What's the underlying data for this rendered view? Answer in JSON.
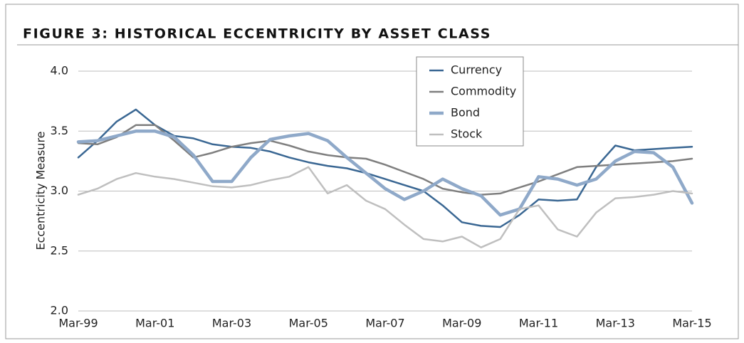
{
  "chart_data": {
    "type": "line",
    "title": "FIGURE 3: HISTORICAL ECCENTRICITY BY ASSET CLASS",
    "y_label": "Eccentricity Measure",
    "categories": [
      "Mar-99",
      null,
      null,
      null,
      "Mar-01",
      null,
      null,
      null,
      "Mar-03",
      null,
      null,
      null,
      "Mar-05",
      null,
      null,
      null,
      "Mar-07",
      null,
      null,
      null,
      "Mar-09",
      null,
      null,
      null,
      "Mar-11",
      null,
      null,
      null,
      "Mar-13",
      null,
      null,
      null,
      "Mar-15"
    ],
    "ylim": [
      2.0,
      4.0
    ],
    "yticks": [
      {
        "value": 2.0,
        "label": "2.0"
      },
      {
        "value": 2.5,
        "label": "2.5"
      },
      {
        "value": 3.0,
        "label": "3.0"
      },
      {
        "value": 3.5,
        "label": "3.5"
      },
      {
        "value": 4.0,
        "label": "4.0"
      }
    ],
    "grid": true,
    "legend": "top",
    "series": [
      {
        "name": "Currency",
        "color": "#3a6793",
        "width": 2.5,
        "values": [
          3.28,
          3.42,
          3.58,
          3.68,
          3.55,
          3.46,
          3.44,
          3.39,
          3.37,
          3.36,
          3.33,
          3.28,
          3.24,
          3.21,
          3.19,
          3.15,
          3.1,
          3.05,
          3.0,
          2.88,
          2.74,
          2.71,
          2.7,
          2.8,
          2.93,
          2.92,
          2.93,
          3.2,
          3.38,
          3.34,
          3.35,
          3.36,
          3.37
        ]
      },
      {
        "name": "Commodity",
        "color": "#7f7f7f",
        "width": 2.5,
        "values": [
          3.4,
          3.39,
          3.45,
          3.55,
          3.55,
          3.42,
          3.28,
          3.32,
          3.37,
          3.4,
          3.42,
          3.38,
          3.33,
          3.3,
          3.28,
          3.27,
          3.22,
          3.16,
          3.1,
          3.02,
          2.99,
          2.97,
          2.98,
          3.03,
          3.08,
          3.14,
          3.2,
          3.21,
          3.22,
          3.23,
          3.24,
          3.25,
          3.27
        ]
      },
      {
        "name": "Bond",
        "color": "#8fa9c9",
        "width": 4.5,
        "values": [
          3.41,
          3.42,
          3.46,
          3.5,
          3.5,
          3.45,
          3.3,
          3.08,
          3.08,
          3.28,
          3.43,
          3.46,
          3.48,
          3.42,
          3.28,
          3.15,
          3.02,
          2.93,
          3.0,
          3.1,
          3.02,
          2.96,
          2.8,
          2.85,
          3.12,
          3.1,
          3.05,
          3.1,
          3.25,
          3.33,
          3.32,
          3.2,
          2.9
        ]
      },
      {
        "name": "Stock",
        "color": "#bfbfbf",
        "width": 2.5,
        "values": [
          2.97,
          3.02,
          3.1,
          3.15,
          3.12,
          3.1,
          3.07,
          3.04,
          3.03,
          3.05,
          3.09,
          3.12,
          3.2,
          2.98,
          3.05,
          2.92,
          2.85,
          2.72,
          2.6,
          2.58,
          2.62,
          2.53,
          2.6,
          2.85,
          2.88,
          2.68,
          2.62,
          2.82,
          2.94,
          2.95,
          2.97,
          3.0,
          2.98
        ]
      }
    ]
  }
}
